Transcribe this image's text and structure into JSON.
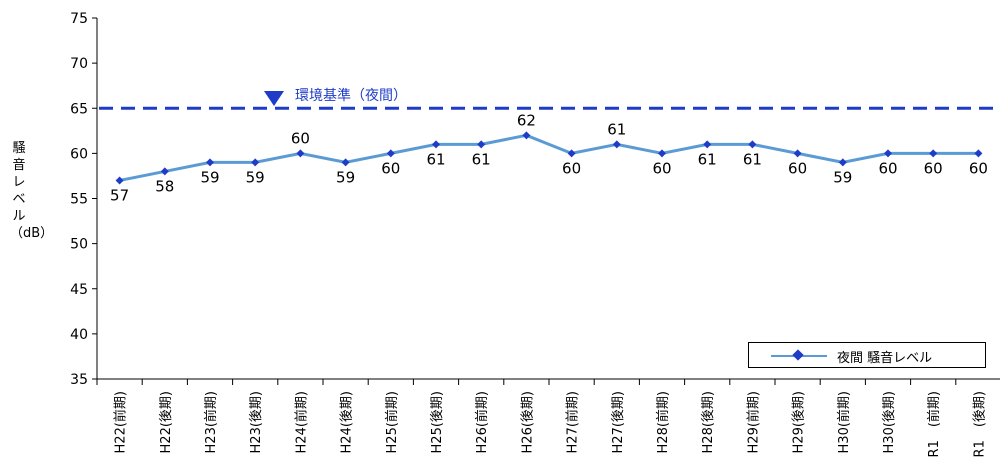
{
  "chart_data": {
    "type": "line",
    "ylabel": "騒音レベル（dB）",
    "ylim": [
      35,
      75
    ],
    "yticks": [
      35,
      40,
      45,
      50,
      55,
      60,
      65,
      70,
      75
    ],
    "categories": [
      "H22(前期)",
      "H22(後期)",
      "H23(前期)",
      "H23(後期)",
      "H24(前期)",
      "H24(後期)",
      "H25(前期)",
      "H25(後期)",
      "H26(前期)",
      "H26(後期)",
      "H27(前期)",
      "H27(後期)",
      "H28(前期)",
      "H28(後期)",
      "H29(前期)",
      "H29(後期)",
      "H30(前期)",
      "H30(後期)",
      "R1　(前期)",
      "R1　(後期)"
    ],
    "series": [
      {
        "name": "夜間 騒音レベル",
        "color": "#5b9bd5",
        "marker_color": "#1f3cc8",
        "values": [
          57,
          58,
          59,
          59,
          60,
          59,
          60,
          61,
          61,
          62,
          60,
          61,
          60,
          61,
          61,
          60,
          59,
          60,
          60,
          60
        ]
      }
    ],
    "reference": {
      "label": "環境基準（夜間）",
      "value": 65,
      "color": "#1f3cc8"
    },
    "legend_position": "bottom-right",
    "grid": false
  }
}
